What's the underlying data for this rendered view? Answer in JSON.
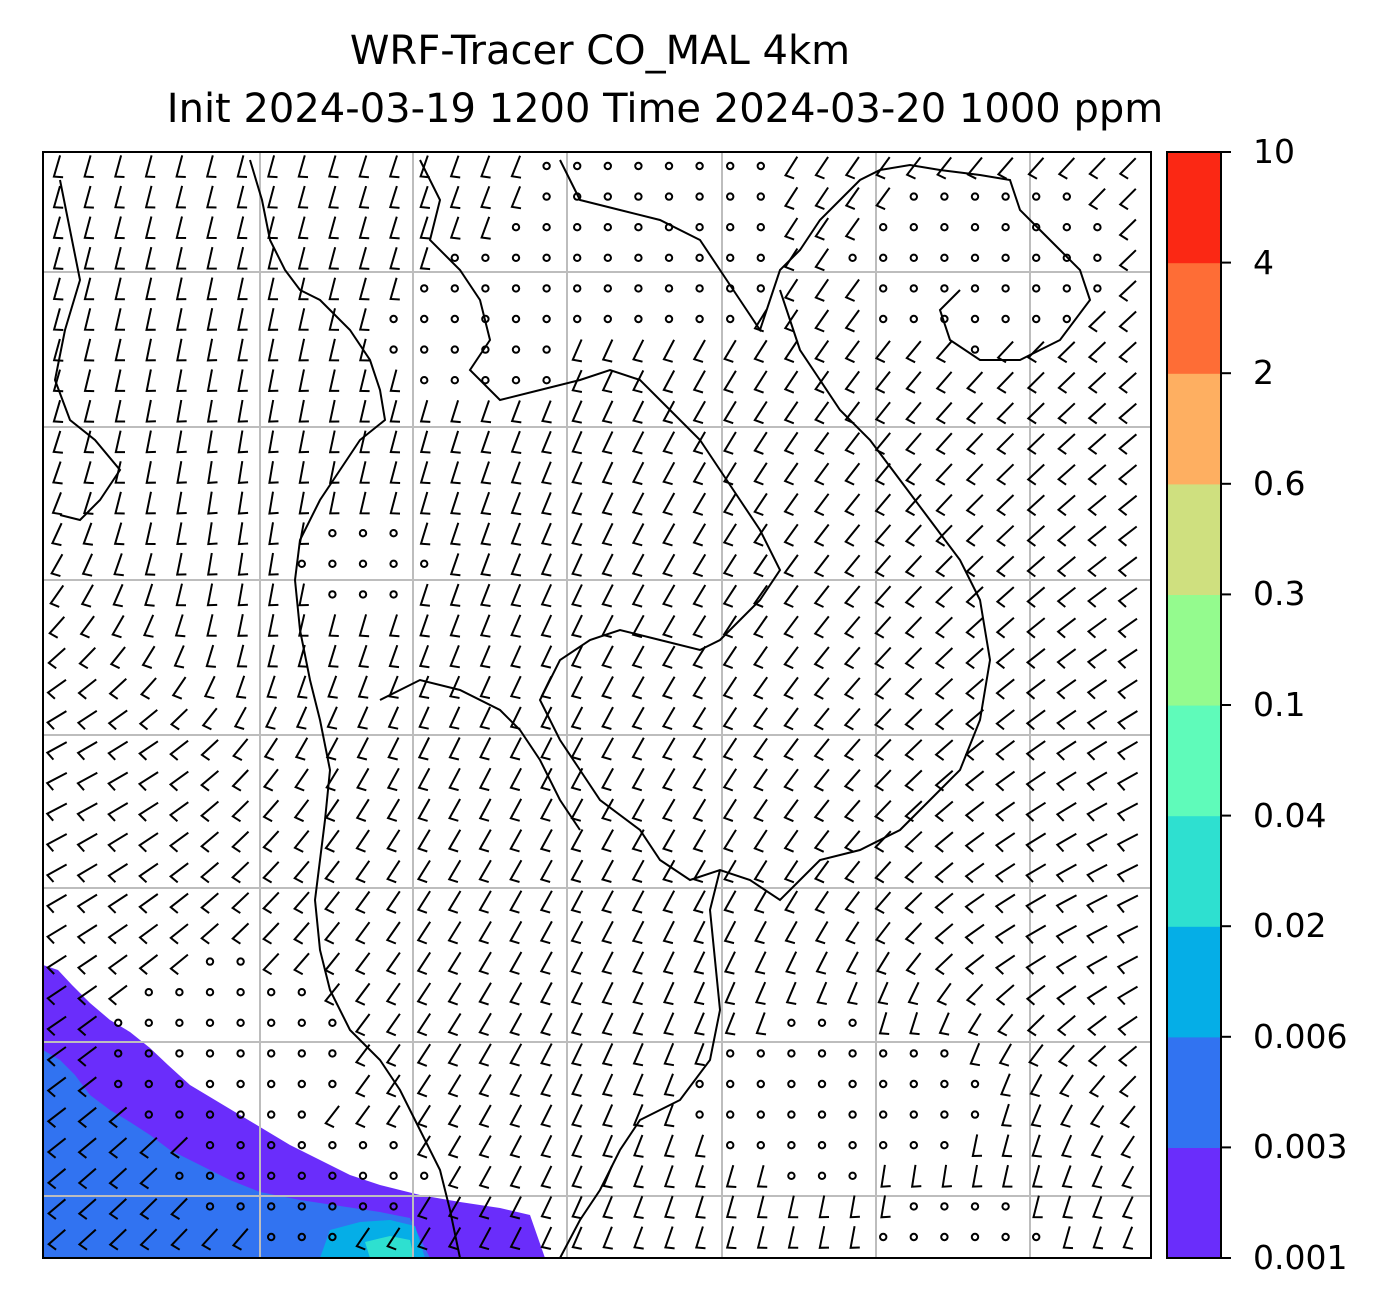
{
  "title": {
    "line1": "WRF-Tracer CO_MAL 4km",
    "line2": "Init 2024-03-19 1200 Time 2024-03-20 1000 ppm"
  },
  "colorbar": {
    "tick_labels": [
      "10",
      "4",
      "2",
      "0.6",
      "0.3",
      "0.1",
      "0.04",
      "0.02",
      "0.006",
      "0.003",
      "0.001"
    ],
    "levels": [
      0.001,
      0.003,
      0.006,
      0.02,
      0.04,
      0.1,
      0.3,
      0.6,
      2,
      4,
      10
    ],
    "colors": [
      "#6a2dfb",
      "#3173f1",
      "#05aee7",
      "#2ee0d0",
      "#5ffbba",
      "#94fb8e",
      "#cfe07f",
      "#feaf61",
      "#fe6d36",
      "#fb2814"
    ]
  },
  "map": {
    "grid": true,
    "background": "#ffffff",
    "coastline_color": "#000000",
    "gridline_color": "#bdbdbd"
  }
}
